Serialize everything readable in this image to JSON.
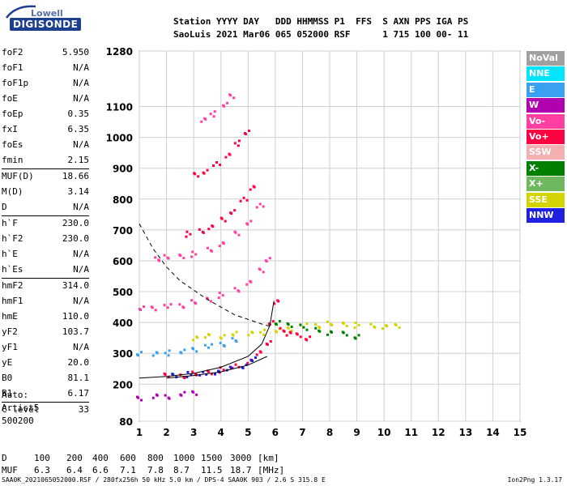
{
  "logo": {
    "top": "Lowell",
    "bottom": "DIGISONDE"
  },
  "header": {
    "line1": "Station YYYY DAY   DDD HHMMSS P1  FFS  S AXN PPS IGA PS",
    "line2": "SaoLuis 2021 Mar06 065 052000 RSF      1 715 100 00- 11"
  },
  "params": [
    {
      "label": "foF2",
      "value": "5.950"
    },
    {
      "label": "foF1",
      "value": "N/A"
    },
    {
      "label": "foF1p",
      "value": "N/A"
    },
    {
      "label": "foE",
      "value": "N/A"
    },
    {
      "label": "foEp",
      "value": "0.35"
    },
    {
      "label": "fxI",
      "value": "6.35"
    },
    {
      "label": "foEs",
      "value": "N/A"
    },
    {
      "label": "fmin",
      "value": "2.15"
    },
    {
      "label": "MUF(D)",
      "value": "18.66"
    },
    {
      "label": "M(D)",
      "value": "3.14"
    },
    {
      "label": "D",
      "value": "N/A"
    },
    {
      "label": "h`F",
      "value": "230.0"
    },
    {
      "label": "h`F2",
      "value": "230.0"
    },
    {
      "label": "h`E",
      "value": "N/A"
    },
    {
      "label": "h`Es",
      "value": "N/A"
    },
    {
      "label": "hmF2",
      "value": "314.0"
    },
    {
      "label": "hmF1",
      "value": "N/A"
    },
    {
      "label": "hmE",
      "value": "110.0"
    },
    {
      "label": "yF2",
      "value": "103.7"
    },
    {
      "label": "yF1",
      "value": "N/A"
    },
    {
      "label": "yE",
      "value": "20.0"
    },
    {
      "label": "B0",
      "value": "81.1"
    },
    {
      "label": "B1",
      "value": "6.17"
    },
    {
      "label": "C-level",
      "value": "33"
    }
  ],
  "auto": {
    "line1": "Auto:",
    "line2": "Artist5",
    "line3": "500200"
  },
  "legend": [
    {
      "label": "NoVal",
      "color": "#a0a0a0"
    },
    {
      "label": "NNE",
      "color": "#00e5ff"
    },
    {
      "label": "E",
      "color": "#3aa0f0"
    },
    {
      "label": "W",
      "color": "#b000b0"
    },
    {
      "label": "Vo-",
      "color": "#ff40a0"
    },
    {
      "label": "Vo+",
      "color": "#ff0040"
    },
    {
      "label": "SSW",
      "color": "#f4b0b0"
    },
    {
      "label": "X-",
      "color": "#008000"
    },
    {
      "label": "X+",
      "color": "#70b860"
    },
    {
      "label": "SSE",
      "color": "#d4d400"
    },
    {
      "label": "NNW",
      "color": "#2020e0"
    }
  ],
  "muf_table": {
    "d_label": "D",
    "muf_label": "MUF",
    "distances": [
      "100",
      "200",
      "400",
      "600",
      "800",
      "1000",
      "1500",
      "3000"
    ],
    "d_unit": "[km]",
    "mufs": [
      "6.3",
      "6.4",
      "6.6",
      "7.1",
      "7.8",
      "8.7",
      "11.5",
      "18.7"
    ],
    "muf_unit": "[MHz]"
  },
  "footer": {
    "left": "SAA0K_2021065052000.RSF / 280fx256h 50 kHz 5.0 km / DPS-4 SAA0K 903 / 2.6 S 315.8 E",
    "right": "Ion2Png 1.3.17"
  },
  "chart_data": {
    "type": "scatter",
    "xlim": [
      1,
      15
    ],
    "ylim": [
      80,
      1280
    ],
    "x_ticks": [
      1,
      2,
      3,
      4,
      5,
      6,
      7,
      8,
      9,
      10,
      11,
      12,
      13,
      14,
      15
    ],
    "y_ticks": [
      80,
      200,
      300,
      400,
      500,
      600,
      700,
      800,
      900,
      1000,
      1100,
      1280
    ],
    "grid": true,
    "xlabel": "",
    "ylabel": "",
    "series": [
      {
        "color": "#ff0040",
        "points": [
          [
            2.0,
            230
          ],
          [
            2.5,
            232
          ],
          [
            3.0,
            236
          ],
          [
            3.5,
            242
          ],
          [
            4.0,
            250
          ],
          [
            4.5,
            262
          ],
          [
            5.0,
            280
          ],
          [
            5.4,
            302
          ],
          [
            5.7,
            340
          ],
          [
            5.85,
            400
          ],
          [
            5.95,
            470
          ]
        ]
      },
      {
        "color": "#2020e0",
        "points": [
          [
            2.2,
            232
          ],
          [
            2.8,
            235
          ],
          [
            3.3,
            238
          ],
          [
            3.8,
            244
          ],
          [
            4.3,
            252
          ],
          [
            4.8,
            264
          ],
          [
            5.2,
            282
          ]
        ]
      },
      {
        "color": "#d4d400",
        "points": [
          [
            3.0,
            355
          ],
          [
            3.5,
            358
          ],
          [
            4.0,
            360
          ],
          [
            4.5,
            365
          ],
          [
            5.0,
            368
          ],
          [
            5.5,
            372
          ],
          [
            6.0,
            378
          ],
          [
            6.5,
            385
          ],
          [
            7.0,
            392
          ],
          [
            7.5,
            395
          ],
          [
            8.0,
            398
          ],
          [
            8.5,
            398
          ],
          [
            9.0,
            395
          ],
          [
            9.5,
            393
          ],
          [
            10.0,
            392
          ],
          [
            10.4,
            390
          ]
        ]
      },
      {
        "color": "#3aa0f0",
        "points": [
          [
            1.0,
            300
          ],
          [
            1.5,
            302
          ],
          [
            2.0,
            305
          ],
          [
            2.5,
            310
          ],
          [
            3.0,
            318
          ],
          [
            3.5,
            325
          ],
          [
            4.0,
            335
          ],
          [
            4.5,
            345
          ]
        ]
      },
      {
        "color": "#ff40a0",
        "points": [
          [
            1.0,
            450
          ],
          [
            1.5,
            452
          ],
          [
            2.0,
            455
          ],
          [
            2.5,
            460
          ],
          [
            3.0,
            468
          ],
          [
            3.5,
            478
          ],
          [
            4.0,
            492
          ],
          [
            4.5,
            510
          ],
          [
            5.0,
            535
          ],
          [
            5.4,
            570
          ],
          [
            5.7,
            610
          ]
        ]
      },
      {
        "color": "#ff40a0",
        "points": [
          [
            1.6,
            612
          ],
          [
            2.0,
            614
          ],
          [
            2.5,
            618
          ],
          [
            3.0,
            625
          ],
          [
            3.5,
            640
          ],
          [
            4.0,
            660
          ],
          [
            4.5,
            690
          ],
          [
            5.0,
            730
          ],
          [
            5.4,
            780
          ]
        ]
      },
      {
        "color": "#ff0040",
        "points": [
          [
            2.8,
            690
          ],
          [
            3.2,
            700
          ],
          [
            3.6,
            715
          ],
          [
            4.0,
            735
          ],
          [
            4.4,
            765
          ],
          [
            4.8,
            800
          ],
          [
            5.1,
            840
          ]
        ]
      },
      {
        "color": "#ff0040",
        "points": [
          [
            3.0,
            880
          ],
          [
            3.4,
            895
          ],
          [
            3.8,
            915
          ],
          [
            4.2,
            945
          ],
          [
            4.6,
            985
          ],
          [
            4.9,
            1020
          ]
        ]
      },
      {
        "color": "#ff40a0",
        "points": [
          [
            3.3,
            1060
          ],
          [
            3.7,
            1080
          ],
          [
            4.1,
            1110
          ],
          [
            4.4,
            1140
          ]
        ]
      },
      {
        "color": "#b000b0",
        "points": [
          [
            1.0,
            160
          ],
          [
            1.5,
            162
          ],
          [
            2.0,
            165
          ],
          [
            2.5,
            170
          ],
          [
            3.0,
            175
          ]
        ]
      },
      {
        "color": "#008000",
        "points": [
          [
            6.0,
            400
          ],
          [
            6.5,
            395
          ],
          [
            7.0,
            388
          ],
          [
            7.5,
            380
          ],
          [
            8.0,
            372
          ],
          [
            8.5,
            365
          ],
          [
            9.0,
            360
          ]
        ]
      },
      {
        "color": "#ff0040",
        "points": [
          [
            6.2,
            380
          ],
          [
            6.5,
            370
          ],
          [
            6.8,
            360
          ],
          [
            7.2,
            355
          ]
        ]
      }
    ],
    "model_curves": {
      "solid": [
        [
          1.0,
          220
        ],
        [
          2.0,
          225
        ],
        [
          3.0,
          235
        ],
        [
          4.0,
          255
        ],
        [
          5.0,
          290
        ],
        [
          5.5,
          330
        ],
        [
          5.8,
          390
        ],
        [
          5.95,
          470
        ]
      ],
      "solid2": [
        [
          2.0,
          220
        ],
        [
          3.0,
          228
        ],
        [
          4.0,
          240
        ],
        [
          5.0,
          262
        ],
        [
          5.7,
          290
        ]
      ],
      "dashed": [
        [
          1.0,
          720
        ],
        [
          1.5,
          640
        ],
        [
          2.0,
          580
        ],
        [
          2.5,
          535
        ],
        [
          3.0,
          505
        ],
        [
          3.5,
          475
        ],
        [
          4.0,
          450
        ],
        [
          4.5,
          425
        ],
        [
          5.0,
          410
        ],
        [
          5.5,
          395
        ],
        [
          5.9,
          385
        ]
      ]
    }
  }
}
